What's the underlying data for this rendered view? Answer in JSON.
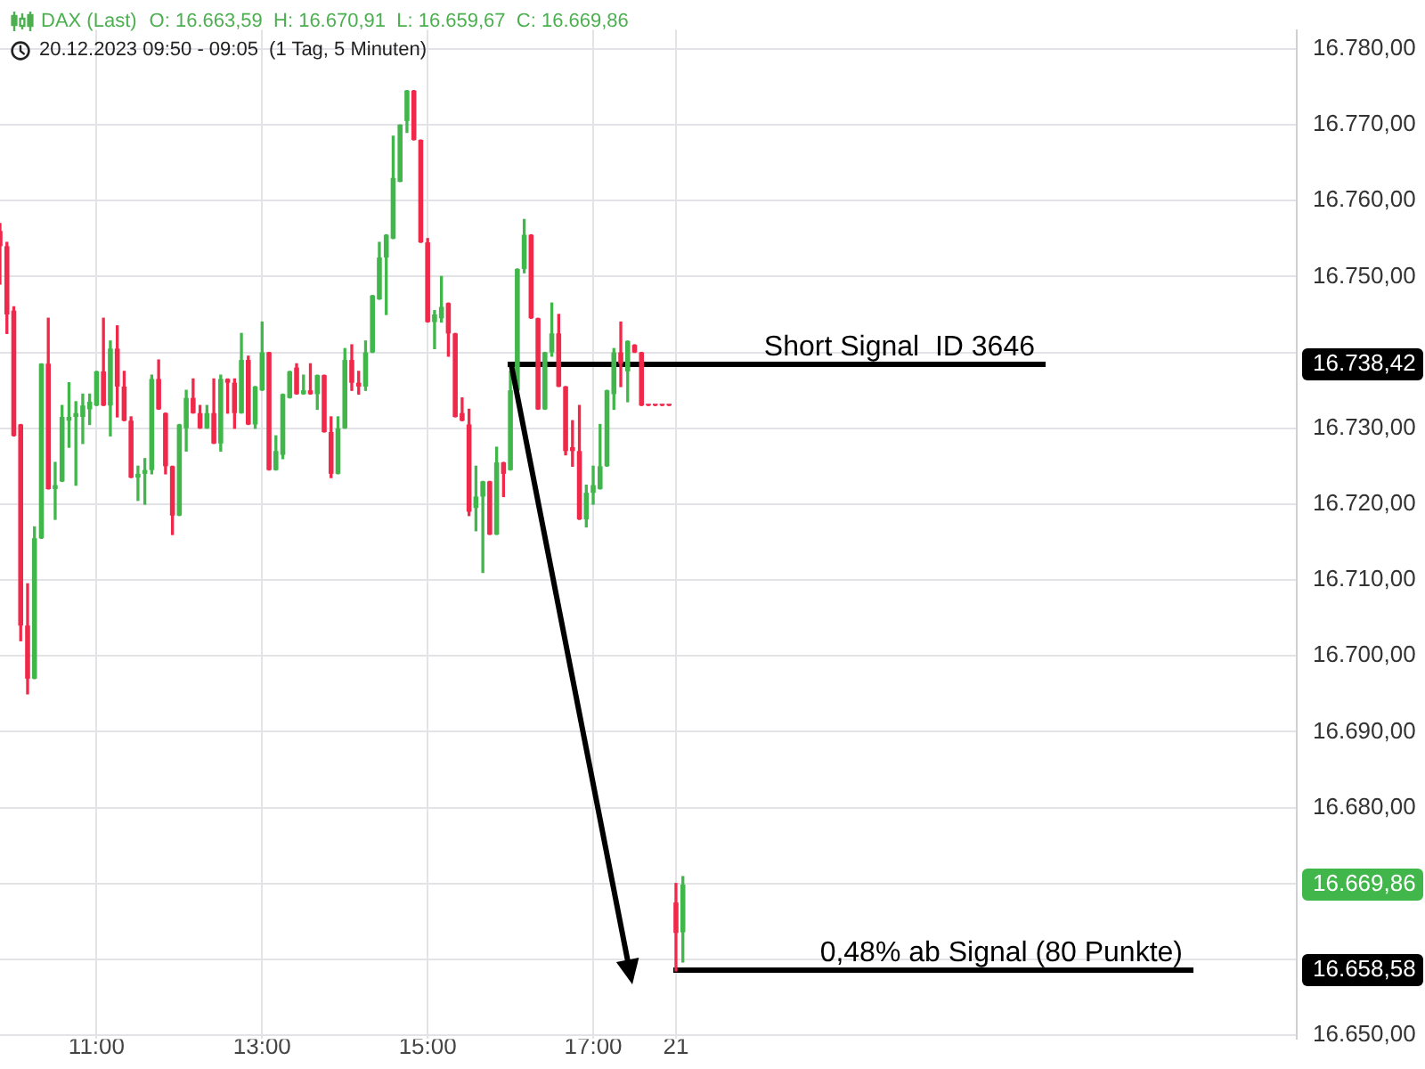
{
  "chart_data": {
    "type": "candlestick",
    "title": "DAX (Last)",
    "subtitle": "20.12.2023 09:50 - 09:05  (1 Tag, 5 Minuten)",
    "annotations": [
      "O: 16.663,59  H: 16.670,91  L: 16.659,67  C: 16.669,86"
    ],
    "categories": [
      null,
      null,
      null,
      null,
      null,
      null,
      null,
      null,
      null,
      null,
      null,
      null,
      null,
      null,
      "11:00",
      null,
      null,
      null,
      null,
      null,
      null,
      null,
      null,
      null,
      null,
      null,
      null,
      null,
      null,
      null,
      null,
      null,
      null,
      null,
      null,
      null,
      null,
      null,
      "13:00",
      null,
      null,
      null,
      null,
      null,
      null,
      null,
      null,
      null,
      null,
      null,
      null,
      null,
      null,
      null,
      null,
      null,
      null,
      null,
      null,
      null,
      null,
      null,
      "15:00",
      null,
      null,
      null,
      null,
      null,
      null,
      null,
      null,
      null,
      null,
      null,
      null,
      null,
      null,
      null,
      null,
      null,
      null,
      null,
      null,
      null,
      null,
      null,
      "17:00",
      null,
      null,
      null,
      null,
      null,
      null,
      null,
      null,
      null,
      null,
      null,
      "21",
      null,
      null,
      null,
      null,
      null,
      null,
      null,
      null,
      null,
      null,
      null,
      null,
      null,
      null,
      null,
      null,
      null,
      null,
      null,
      null,
      null,
      null,
      null,
      null,
      null,
      null,
      null,
      null,
      null,
      null,
      null,
      null,
      null,
      null,
      null,
      null,
      null,
      null,
      null,
      null,
      null,
      null,
      null,
      null,
      null,
      null,
      null,
      null,
      null,
      null,
      null,
      null,
      null,
      null,
      null,
      null,
      null,
      null,
      null,
      null,
      null,
      null,
      null,
      null,
      null,
      null,
      null,
      null,
      null,
      null,
      null,
      null,
      null,
      null,
      null,
      null,
      null,
      null,
      null,
      null,
      null,
      null,
      null,
      null,
      null,
      null,
      null,
      null,
      null,
      null
    ],
    "ohlc": [
      [
        16756,
        16757,
        16749,
        16754
      ],
      [
        16754,
        16754.5,
        16742.5,
        16745
      ],
      [
        16745.5,
        16746,
        16729,
        16729
      ],
      [
        16730.5,
        16730.5,
        16702,
        16704
      ],
      [
        16704,
        16709.5,
        16695,
        16697
      ],
      [
        16697,
        16717,
        16697,
        16715.5
      ],
      [
        16715.5,
        16738.5,
        16715.5,
        16738.5
      ],
      [
        16738.5,
        16744.5,
        16722,
        16722
      ],
      [
        16722,
        16725.5,
        16718,
        16722.5
      ],
      [
        16723,
        16733,
        16723,
        16731.5
      ],
      [
        16731,
        16736,
        16727.5,
        16731.5
      ],
      [
        16731.5,
        16733.5,
        16722.5,
        16732
      ],
      [
        16731.5,
        16734.5,
        16728,
        16733
      ],
      [
        16732.5,
        16734.5,
        16730.5,
        16733.5
      ],
      [
        16733,
        16737.5,
        16733,
        16737.5
      ],
      [
        16737.5,
        16744.5,
        16733,
        16733
      ],
      [
        16733,
        16741.5,
        16729,
        16740.5
      ],
      [
        16740.5,
        16743.5,
        16731.5,
        16735.5
      ],
      [
        16735.5,
        16737.5,
        16731,
        16731
      ],
      [
        16731,
        16731.5,
        16723.5,
        16723.5
      ],
      [
        16723.5,
        16725,
        16720.5,
        16724
      ],
      [
        16724,
        16726,
        16720,
        16724.5
      ],
      [
        16724.5,
        16737,
        16724,
        16736.5
      ],
      [
        16736.5,
        16739,
        16732.5,
        16732.5
      ],
      [
        16732,
        16732,
        16724,
        16725
      ],
      [
        16725,
        16725,
        16716,
        16718.5
      ],
      [
        16718.5,
        16730.5,
        16718.5,
        16730.5
      ],
      [
        16730,
        16735,
        16727,
        16734
      ],
      [
        16734,
        16736.5,
        16732,
        16732
      ],
      [
        16732,
        16733,
        16730,
        16730
      ],
      [
        16730,
        16733,
        16730,
        16732
      ],
      [
        16732,
        16736.5,
        16728,
        16728
      ],
      [
        16728,
        16737,
        16727,
        16736.5
      ],
      [
        16736.5,
        16736.5,
        16732,
        16736
      ],
      [
        16736,
        16736.5,
        16730,
        16732
      ],
      [
        16732,
        16742.5,
        16732,
        16739
      ],
      [
        16739,
        16739.5,
        16730.5,
        16730.5
      ],
      [
        16730.5,
        16735.5,
        16730,
        16735.5
      ],
      [
        16735,
        16744,
        16735,
        16740
      ],
      [
        16740,
        16740,
        16724.5,
        16724.5
      ],
      [
        16724.5,
        16729,
        16724.5,
        16727
      ],
      [
        16726.5,
        16734.5,
        16726,
        16734.5
      ],
      [
        16734,
        16737.5,
        16734,
        16737.5
      ],
      [
        16738,
        16738.5,
        16734.5,
        16734.5
      ],
      [
        16734.5,
        16737,
        16734.5,
        16735
      ],
      [
        16735,
        16738.5,
        16734.5,
        16734.5
      ],
      [
        16734.5,
        16737,
        16732.5,
        16737
      ],
      [
        16737,
        16737,
        16729.5,
        16729.5
      ],
      [
        16729.5,
        16731.5,
        16723.5,
        16724
      ],
      [
        16724,
        16731.5,
        16724,
        16730
      ],
      [
        16730,
        16740.5,
        16730,
        16739
      ],
      [
        16739,
        16741,
        16735,
        16736
      ],
      [
        16736,
        16737.5,
        16734.5,
        16735.5
      ],
      [
        16735.5,
        16741.5,
        16735,
        16740
      ],
      [
        16740,
        16747.5,
        16740,
        16747.5
      ],
      [
        16747,
        16754.5,
        16747,
        16752.5
      ],
      [
        16752.5,
        16755.5,
        16745,
        16755.5
      ],
      [
        16755,
        16768.5,
        16755,
        16763
      ],
      [
        16762.5,
        16770,
        16762.5,
        16770
      ],
      [
        16770.5,
        16774.5,
        16769,
        16774.5
      ],
      [
        16774.5,
        16774.5,
        16768,
        16768
      ],
      [
        16768,
        16768,
        16754.5,
        16754.5
      ],
      [
        16754.5,
        16755,
        16744,
        16744
      ],
      [
        16744,
        16745.5,
        16740.5,
        16745
      ],
      [
        16744.5,
        16750,
        16744,
        16746
      ],
      [
        16746.5,
        16746.5,
        16739.5,
        16742.5
      ],
      [
        16742.5,
        16742.5,
        16731.5,
        16731.5
      ],
      [
        16732,
        16734,
        16731,
        16731
      ],
      [
        16730.5,
        16732.5,
        16718.5,
        16719
      ],
      [
        16719.5,
        16725,
        16716.5,
        16721
      ],
      [
        16721,
        16723,
        16711,
        16723
      ],
      [
        16723,
        16723,
        16716,
        16716
      ],
      [
        16716,
        16727.5,
        16716,
        16725.5
      ],
      [
        16725.5,
        16725.5,
        16721,
        16724
      ],
      [
        16724.5,
        16737.5,
        16724.5,
        16735
      ],
      [
        16735,
        16751,
        16735,
        16751
      ],
      [
        16751,
        16757.5,
        16750.5,
        16755.5
      ],
      [
        16755.5,
        16755.5,
        16744.5,
        16744.5
      ],
      [
        16744.5,
        16744.5,
        16732.5,
        16732.5
      ],
      [
        16732.5,
        16740,
        16732.5,
        16740
      ],
      [
        16740,
        16746.5,
        16739.5,
        16742.5
      ],
      [
        16742.5,
        16745,
        16735.5,
        16735.5
      ],
      [
        16735.5,
        16735.5,
        16726.5,
        16727
      ],
      [
        16727.5,
        16731,
        16725,
        16727
      ],
      [
        16727,
        16733,
        16718,
        16718
      ],
      [
        16718,
        16722.5,
        16717,
        16721.5
      ],
      [
        16721.5,
        16725,
        16720,
        16722.5
      ],
      [
        16722,
        16730.5,
        16722,
        16725
      ],
      [
        16725,
        16735,
        16725,
        16735
      ],
      [
        16734.5,
        16740.5,
        16732.5,
        16740
      ],
      [
        16740,
        16744,
        16735.5,
        16738.5
      ],
      [
        16737.5,
        16741.5,
        16733.5,
        16741.5
      ],
      [
        16741,
        16741,
        16740,
        16740
      ],
      [
        16740,
        16740,
        16733,
        16733
      ],
      [
        16733,
        16733,
        16733,
        16733
      ],
      [
        16733,
        16733,
        16733,
        16733
      ],
      [
        16733,
        16733,
        16733,
        16733
      ],
      [
        16733,
        16733,
        16733,
        16733
      ],
      [
        16667.5,
        16670,
        16658.5,
        16663.5
      ],
      [
        16663.59,
        16670.91,
        16659.67,
        16669.86
      ],
      null,
      null,
      null,
      null,
      null,
      null,
      null,
      null,
      null,
      null,
      null,
      null,
      null,
      null,
      null,
      null,
      null,
      null,
      null,
      null,
      null,
      null,
      null,
      null,
      null,
      null,
      null,
      null,
      null,
      null,
      null,
      null,
      null,
      null,
      null,
      null,
      null,
      null,
      null,
      null,
      null,
      null,
      null,
      null,
      null,
      null,
      null,
      null,
      null,
      null,
      null,
      null,
      null,
      null,
      null,
      null,
      null,
      null,
      null,
      null,
      null,
      null,
      null,
      null,
      null,
      null,
      null,
      null,
      null,
      null,
      null,
      null,
      null,
      null,
      null,
      null,
      null,
      null,
      null,
      null,
      null,
      null,
      null,
      null,
      null,
      null,
      null,
      null,
      null
    ],
    "colors": [
      "#f0284a",
      "#f0284a",
      "#f0284a",
      "#f0284a",
      "#f0284a",
      "#41b64b",
      "#41b64b",
      "#f0284a",
      "#41b64b",
      "#41b64b",
      "#41b64b",
      "#41b64b",
      "#41b64b",
      "#41b64b",
      "#41b64b",
      "#f0284a",
      "#41b64b",
      "#f0284a",
      "#f0284a",
      "#f0284a",
      "#41b64b",
      "#41b64b",
      "#41b64b",
      "#f0284a",
      "#f0284a",
      "#f0284a",
      "#41b64b",
      "#41b64b",
      "#f0284a",
      "#f0284a",
      "#41b64b",
      "#f0284a",
      "#41b64b",
      "#f0284a",
      "#f0284a",
      "#41b64b",
      "#f0284a",
      "#41b64b",
      "#41b64b",
      "#f0284a",
      "#41b64b",
      "#41b64b",
      "#41b64b",
      "#f0284a",
      "#41b64b",
      "#f0284a",
      "#41b64b",
      "#f0284a",
      "#f0284a",
      "#41b64b",
      "#41b64b",
      "#f0284a",
      "#f0284a",
      "#41b64b",
      "#41b64b",
      "#41b64b",
      "#41b64b",
      "#41b64b",
      "#41b64b",
      "#41b64b",
      "#f0284a",
      "#f0284a",
      "#f0284a",
      "#41b64b",
      "#41b64b",
      "#f0284a",
      "#f0284a",
      "#f0284a",
      "#f0284a",
      "#41b64b",
      "#41b64b",
      "#f0284a",
      "#41b64b",
      "#f0284a",
      "#41b64b",
      "#41b64b",
      "#41b64b",
      "#f0284a",
      "#f0284a",
      "#41b64b",
      "#41b64b",
      "#f0284a",
      "#f0284a",
      "#f0284a",
      "#f0284a",
      "#41b64b",
      "#41b64b",
      "#41b64b",
      "#41b64b",
      "#41b64b",
      "#f0284a",
      "#41b64b",
      "#f0284a",
      "#f0284a",
      "#f0284a",
      "#f0284a",
      "#f0284a",
      "#f0284a",
      "#f0284a",
      "#41b64b",
      null,
      null,
      null,
      null,
      null,
      null,
      null,
      null,
      null,
      null,
      null,
      null,
      null,
      null,
      null,
      null,
      null,
      null,
      null,
      null,
      null,
      null,
      null,
      null,
      null,
      null,
      null,
      null,
      null,
      null,
      null,
      null,
      null,
      null,
      null,
      null,
      null,
      null,
      null,
      null,
      null,
      null,
      null,
      null,
      null,
      null,
      null,
      null,
      null,
      null,
      null,
      null,
      null,
      null,
      null,
      null,
      null,
      null,
      null,
      null,
      null,
      null,
      null,
      null,
      null,
      null,
      null,
      null,
      null,
      null,
      null,
      null,
      null,
      null,
      null,
      null,
      null,
      null,
      null,
      null,
      null,
      null,
      null,
      null,
      null,
      null,
      null,
      null,
      null
    ],
    "ylim": [
      16649.5,
      16782.5
    ],
    "yticks": [
      {
        "value": 16650,
        "label": "16.650,00"
      },
      {
        "value": 16658.58,
        "label": "16.658,58"
      },
      {
        "value": 16660,
        "label": null
      },
      {
        "value": 16669.86,
        "label": "16.669,86"
      },
      {
        "value": 16670,
        "label": null
      },
      {
        "value": 16680,
        "label": "16.680,00"
      },
      {
        "value": 16690,
        "label": "16.690,00"
      },
      {
        "value": 16700,
        "label": "16.700,00"
      },
      {
        "value": 16710,
        "label": "16.710,00"
      },
      {
        "value": 16720,
        "label": "16.720,00"
      },
      {
        "value": 16730,
        "label": "16.730,00"
      },
      {
        "value": 16738.42,
        "label": "16.738,42"
      },
      {
        "value": 16740,
        "label": null
      },
      {
        "value": 16750,
        "label": "16.750,00"
      },
      {
        "value": 16760,
        "label": "16.760,00"
      },
      {
        "value": 16770,
        "label": "16.770,00"
      },
      {
        "value": 16780,
        "label": "16.780,00"
      }
    ],
    "ref_lines": [
      {
        "axis": "y",
        "value": 16738.42,
        "label": "Short Signal  ID 3646",
        "color": "#000000"
      },
      {
        "axis": "y",
        "value": 16658.58,
        "label": "0,48% ab Signal (80 Punkte)",
        "color": "#000000"
      }
    ],
    "grid": true
  }
}
